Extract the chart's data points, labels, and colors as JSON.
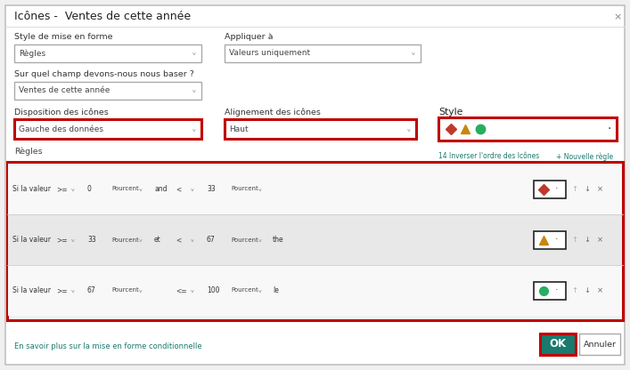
{
  "title": "Icônes -  Ventes de cette année",
  "close_x": "×",
  "bg_color": "#f0f0f0",
  "dialog_bg": "#ffffff",
  "border_color": "#cccccc",
  "red_border": "#c00000",
  "teal_ok": "#1a7a6e",
  "label_style_mise": "Style de mise en forme",
  "label_appliquer": "Appliquer à",
  "dropdown_regles": "Règles",
  "dropdown_valeurs": "Valeurs uniquement",
  "label_champ": "Sur quel champ devons-nous nous baser ?",
  "dropdown_ventes": "Ventes de cette année",
  "label_disposition": "Disposition des icônes",
  "label_alignement": "Alignement des icônes",
  "label_style": "Style",
  "dropdown_gauche": "Gauche des données",
  "dropdown_haut": "Haut",
  "label_regles": "Règles",
  "link_inverser": "14 Inverser l'ordre des Icônes",
  "link_new_rule": "+ Nouvelle règle",
  "link_color": "#1a7a6e",
  "link_bottom": "En savoir plus sur la mise en forme conditionnelle",
  "row1": {
    "if_txt": "Si la valeur",
    "op1": ">=",
    "val1": "0",
    "unit1": "Pourcent",
    "and_et": "and",
    "op2": "<",
    "val2": "33",
    "unit2": "Pourcent",
    "the_le": ""
  },
  "row2": {
    "if_txt": "Si la valeur",
    "op1": ">=",
    "val1": "33",
    "unit1": "Pourcent",
    "and_et": "et",
    "op2": "<",
    "val2": "67",
    "unit2": "Pourcent",
    "the_le": "the"
  },
  "row3": {
    "if_txt": "Si la valeur",
    "op1": ">=",
    "val1": "67",
    "unit1": "Pourcent",
    "and_et": "",
    "op2": "<=",
    "val2": "100",
    "unit2": "Pourcent",
    "the_le": "le"
  },
  "icon_red_color": "#c0392b",
  "icon_yellow_color": "#c8860a",
  "icon_green_color": "#27ae60",
  "ok_text": "OK",
  "annuler_text": "Annuler",
  "font_size_title": 9,
  "font_size_label": 6.8,
  "font_size_small": 6.0,
  "font_size_tiny": 5.5
}
